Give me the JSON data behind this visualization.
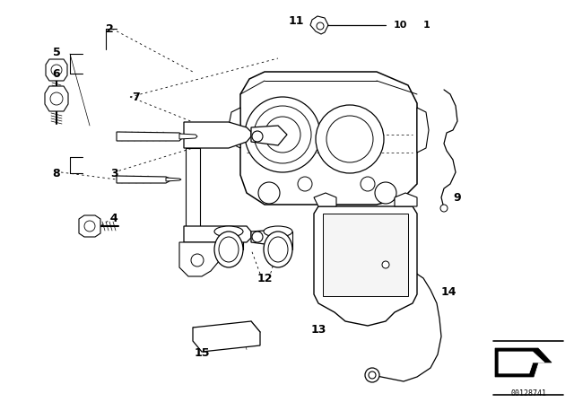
{
  "bg_color": "#ffffff",
  "part_number": "00128741",
  "figsize": [
    6.4,
    4.48
  ],
  "dpi": 100
}
